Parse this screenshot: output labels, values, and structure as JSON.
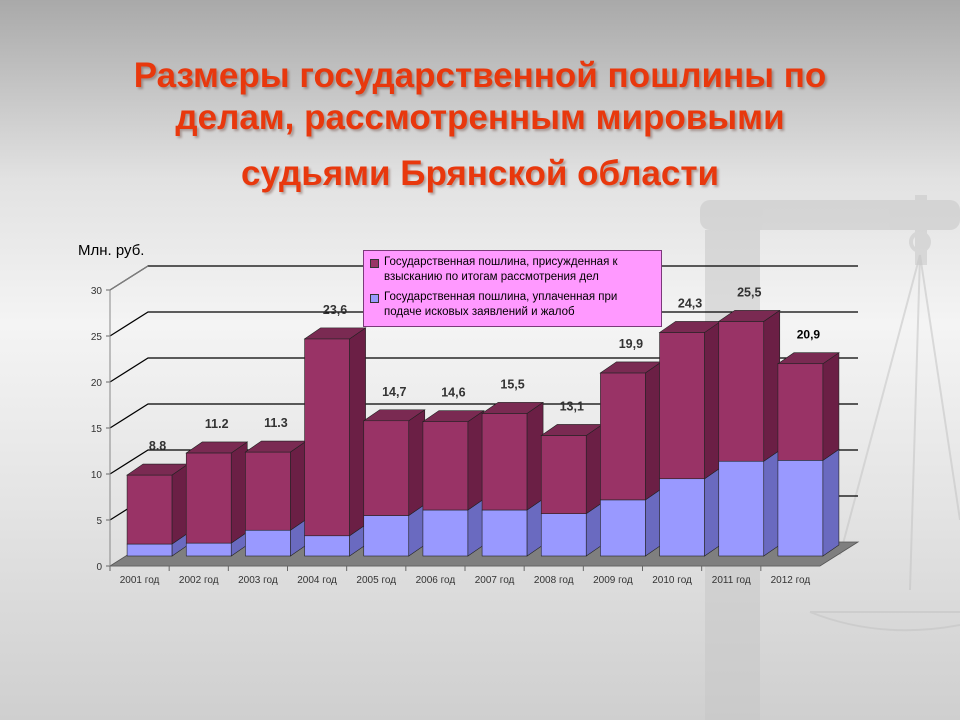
{
  "title": {
    "line1": "Размеры государственной пошлины по",
    "line2": "делам, рассмотренным мировыми",
    "line3": "судьями Брянской области"
  },
  "colors": {
    "awarded": "#993366",
    "awarded_side": "#6b1f45",
    "awarded_top": "#7a2a52",
    "paid": "#9999ff",
    "paid_side": "#6a6ac0",
    "paid_top": "#7c7cd8",
    "title": "#e8380d",
    "legend_bg": "#ff99ff"
  },
  "chart_data": {
    "type": "bar",
    "stacked": true,
    "three_d": true,
    "unit_label": "Млн. руб.",
    "categories": [
      "2001 год",
      "2002 год",
      "2003 год",
      "2004 год",
      "2005 год",
      "2006 год",
      "2007 год",
      "2008 год",
      "2009 год",
      "2010 год",
      "2011 год",
      "2012 год"
    ],
    "series": [
      {
        "name": "Государственная пошлина, уплаченная при подаче исковых заявлений и жалоб",
        "values": [
          1.3,
          1.4,
          2.8,
          2.2,
          4.4,
          5.0,
          5.0,
          4.6,
          6.1,
          8.4,
          10.3,
          10.4
        ]
      },
      {
        "name": "Государственная пошлина, присужденная к взысканию по итогам рассмотрения дел",
        "values": [
          7.5,
          9.8,
          8.5,
          21.4,
          10.3,
          9.6,
          10.5,
          8.5,
          13.8,
          15.9,
          15.2,
          10.5
        ]
      }
    ],
    "total_labels": [
      "8.8",
      "11.2",
      "11.3",
      "23,6",
      "14,7",
      "14,6",
      "15,5",
      "13,1",
      "19,9",
      "24,3",
      "25,5",
      "20,9"
    ],
    "y_ticks": [
      "0",
      "5",
      "10",
      "15",
      "20",
      "25",
      "30"
    ],
    "ylim": [
      0,
      30
    ],
    "grid": true,
    "legend_placement": "top-center"
  }
}
